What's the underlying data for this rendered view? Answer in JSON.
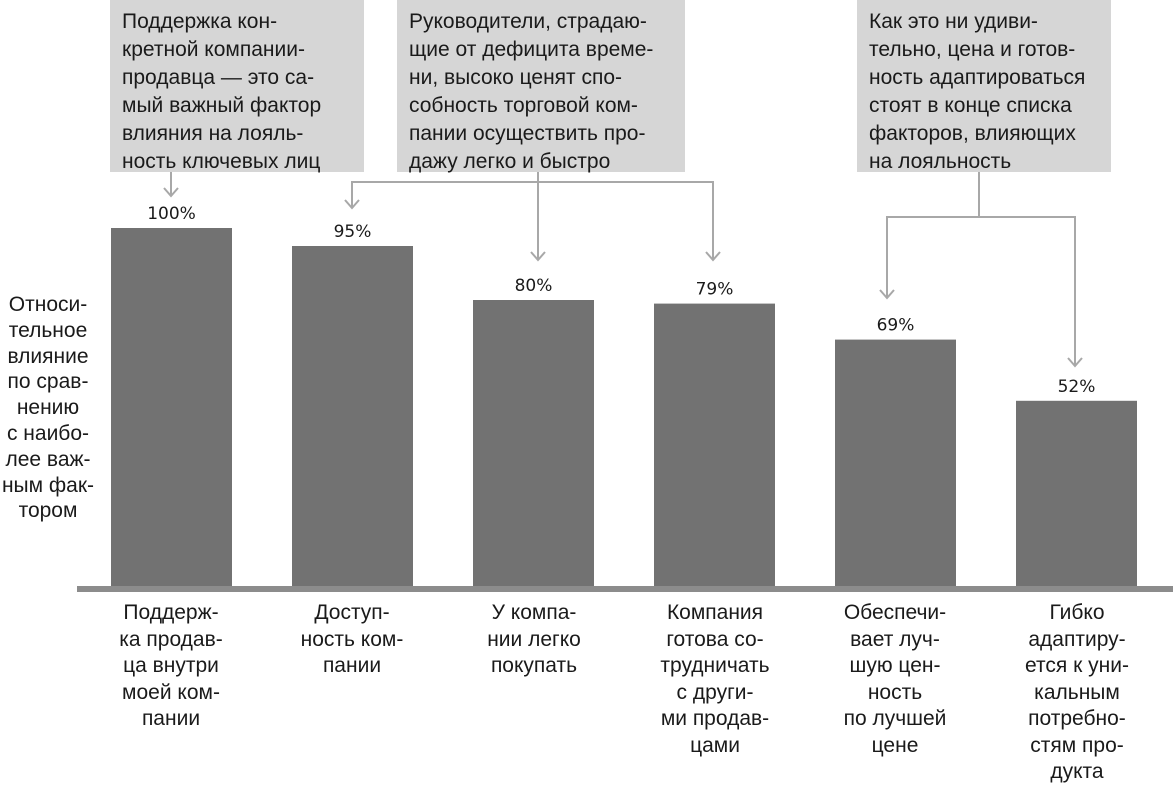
{
  "chart_data": {
    "type": "bar",
    "ylabel": "Относи-\nтельное\nвлияние\nпо срав-\nнению\nс наибо-\nлее важ-\nным фак-\nтором",
    "categories": [
      "Поддерж-\nка продав-\nца внутри\nмоей ком-\nпании",
      "Доступ-\nность ком-\nпании",
      "У компа-\nнии легко\nпокупать",
      "Компания\nготова со-\nтрудничать\nс други-\nми продав-\nцами",
      "Обеспечи-\nвает луч-\nшую цен-\nность\nпо лучшей\nцене",
      "Гибко\nадаптиру-\nется к уни-\nкальным\nпотребно-\nстям про-\nдукта"
    ],
    "values": [
      100,
      95,
      80,
      79,
      69,
      52
    ],
    "value_labels": [
      "100%",
      "95%",
      "80%",
      "79%",
      "69%",
      "52%"
    ],
    "ylim": [
      0,
      100
    ],
    "grid": false,
    "annotations": [
      "Поддержка кон-\nкретной компании-\nпродавца — это са-\nмый важный фактор\nвлияния на лояль-\nность ключевых лиц",
      "Руководители, страдаю-\nщие от дефицита време-\nни, высоко ценят спо-\nсобность торговой ком-\nпании осуществить про-\nдажу легко и быстро",
      "Как это ни удиви-\nтельно, цена и готов-\nность адаптироваться\nстоят в конце списка\nфакторов, влияющих\nна лояльность"
    ],
    "colors": {
      "bar": "#727272",
      "axis": "#8c8c8c",
      "callout": "#d6d6d6",
      "connector": "#a8a8a8"
    }
  }
}
